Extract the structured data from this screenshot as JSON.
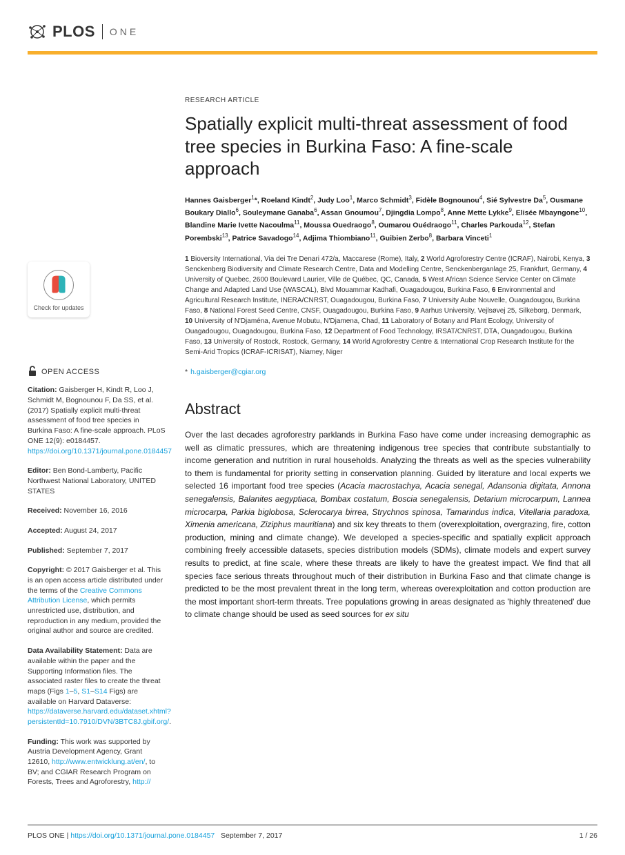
{
  "header": {
    "journal_logo_text": "PLOS",
    "journal_sub": "ONE",
    "rule_color": "#F8AF2C"
  },
  "sidebar": {
    "check_updates_label": "Check for updates",
    "open_access_label": "OPEN ACCESS",
    "citation_label": "Citation:",
    "citation_text": " Gaisberger H, Kindt R, Loo J, Schmidt M, Bognounou F, Da SS, et al. (2017) Spatially explicit multi-threat assessment of food tree species in Burkina Faso: A fine-scale approach. PLoS ONE 12(9): e0184457. ",
    "citation_doi": "https://doi.org/10.1371/journal.pone.0184457",
    "editor_label": "Editor:",
    "editor_text": " Ben Bond-Lamberty, Pacific Northwest National Laboratory, UNITED STATES",
    "received_label": "Received:",
    "received_text": " November 16, 2016",
    "accepted_label": "Accepted:",
    "accepted_text": " August 24, 2017",
    "published_label": "Published:",
    "published_text": " September 7, 2017",
    "copyright_label": "Copyright:",
    "copyright_text_1": " © 2017 Gaisberger et al. This is an open access article distributed under the terms of the ",
    "copyright_link": "Creative Commons Attribution License",
    "copyright_text_2": ", which permits unrestricted use, distribution, and reproduction in any medium, provided the original author and source are credited.",
    "data_label": "Data Availability Statement:",
    "data_text_1": " Data are available within the paper and the Supporting Information files. The associated raster files to create the threat maps (Figs ",
    "data_figlink1": "1",
    "data_dash1": "–",
    "data_figlink2": "5",
    "data_sep": ", ",
    "data_figlink3": "S1",
    "data_dash2": "–",
    "data_figlink4": "S14",
    "data_text_2": " Figs) are available on Harvard Dataverse: ",
    "data_link": "https://dataverse.harvard.edu/dataset.xhtml?persistentId=10.7910/DVN/3BTC8J.gbif.org/",
    "data_period": ".",
    "funding_label": "Funding:",
    "funding_text_1": " This work was supported by Austria Development Agency, Grant 12610, ",
    "funding_link1": "http://www.entwicklung.at/en/",
    "funding_text_2": ", to BV; and CGIAR Research Program on Forests, Trees and Agroforestry, ",
    "funding_link2": "http://"
  },
  "article": {
    "type": "RESEARCH ARTICLE",
    "title": "Spatially explicit multi-threat assessment of food tree species in Burkina Faso: A fine-scale approach",
    "authors_html": "Hannes Gaisberger<sup>1</sup>*, Roeland Kindt<sup>2</sup>, Judy Loo<sup>1</sup>, Marco Schmidt<sup>3</sup>, Fidèle Bognounou<sup>4</sup>, Sié Sylvestre Da<sup>5</sup>, Ousmane Boukary Diallo<sup>6</sup>, Souleymane Ganaba<sup>6</sup>, Assan Gnoumou<sup>7</sup>, Djingdia Lompo<sup>8</sup>, Anne Mette Lykke<sup>9</sup>, Elisée Mbayngone<sup>10</sup>, Blandine Marie Ivette Nacoulma<sup>11</sup>, Moussa Ouedraogo<sup>8</sup>, Oumarou Ouédraogo<sup>11</sup>, Charles Parkouda<sup>12</sup>, Stefan Porembski<sup>13</sup>, Patrice Savadogo<sup>14</sup>, Adjima Thiombiano<sup>11</sup>, Guibien Zerbo<sup>8</sup>, Barbara Vinceti<sup>1</sup>",
    "affils": "1 Bioversity International, Via dei Tre Denari 472/a, Maccarese (Rome), Italy, 2 World Agroforestry Centre (ICRAF), Nairobi, Kenya, 3 Senckenberg Biodiversity and Climate Research Centre, Data and Modelling Centre, Senckenberganlage 25, Frankfurt, Germany, 4 University of Quebec, 2600 Boulevard Laurier, Ville de Québec, QC, Canada, 5 West African Science Service Center on Climate Change and Adapted Land Use (WASCAL), Blvd Mouammar Kadhafi, Ouagadougou, Burkina Faso, 6 Environmental and Agricultural Research Institute, INERA/CNRST, Ouagadougou, Burkina Faso, 7 University Aube Nouvelle, Ouagadougou, Burkina Faso, 8 National Forest Seed Centre, CNSF, Ouagadougou, Burkina Faso, 9 Aarhus University, Vejlsøvej 25, Silkeborg, Denmark, 10 University of N'Djaména, Avenue Mobutu, N'Djamena, Chad, 11 Laboratory of Botany and Plant Ecology, University of Ouagadougou, Ouagadougou, Burkina Faso, 12 Department of Food Technology, IRSAT/CNRST, DTA, Ouagadougou, Burkina Faso, 13 University of Rostock, Rostock, Germany, 14 World Agroforestry Centre & International Crop Research Institute for the Semi-Arid Tropics (ICRAF-ICRISAT), Niamey, Niger",
    "corr_email": "h.gaisberger@cgiar.org",
    "abstract_heading": "Abstract",
    "abstract_pre": "Over the last decades agroforestry parklands in Burkina Faso have come under increasing demographic as well as climatic pressures, which are threatening indigenous tree species that contribute substantially to income generation and nutrition in rural households. Analyzing the threats as well as the species vulnerability to them is fundamental for priority setting in conservation planning. Guided by literature and local experts we selected 16 important food tree species (",
    "abstract_species": "Acacia macrostachya, Acacia senegal, Adansonia digitata, Annona senegalensis, Balanites aegyptiaca, Bombax costatum, Boscia senegalensis, Detarium microcarpum, Lannea microcarpa, Parkia biglobosa, Sclerocarya birrea, Strychnos spinosa, Tamarindus indica, Vitellaria paradoxa, Ximenia americana, Ziziphus mauritiana",
    "abstract_mid": ") and six key threats to them (overexploitation, overgrazing, fire, cotton production, mining and climate change). We developed a species-specific and spatially explicit approach combining freely accessible datasets, species distribution models (SDMs), climate models and expert survey results to predict, at fine scale, where these threats are likely to have the greatest impact. We find that all species face serious threats throughout much of their distribution in Burkina Faso and that climate change is predicted to be the most prevalent threat in the long term, whereas overexploitation and cotton production are the most important short-term threats. Tree populations growing in areas designated as 'highly threatened' due to climate change should be used as seed sources for ",
    "abstract_exsitu": "ex situ"
  },
  "footer": {
    "journal": "PLOS ONE | ",
    "doi": "https://doi.org/10.1371/journal.pone.0184457",
    "date": "September 7, 2017",
    "page": "1 / 26"
  }
}
